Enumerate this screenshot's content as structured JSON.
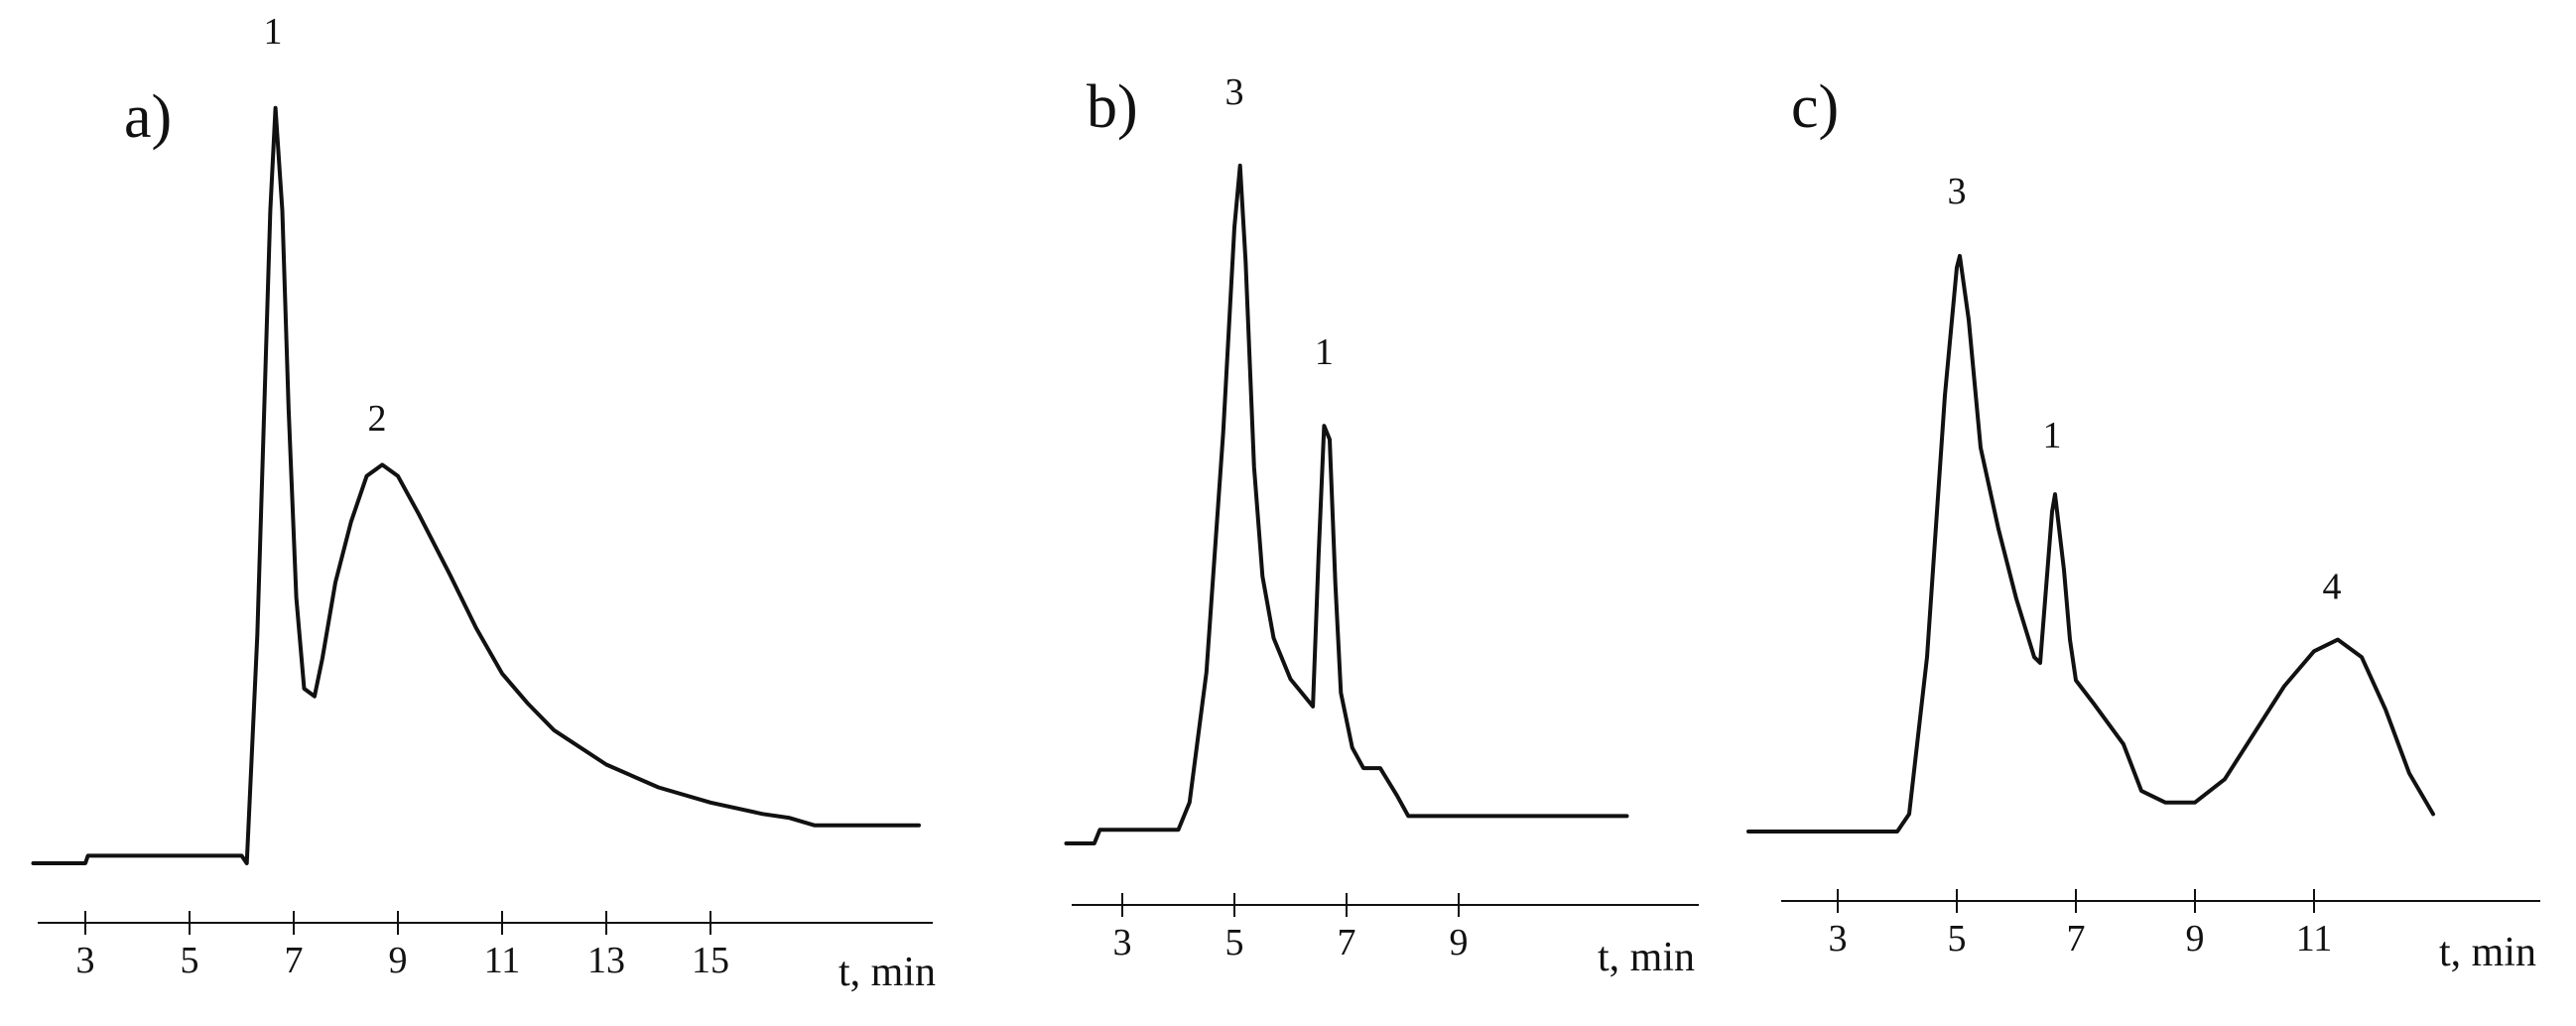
{
  "colors": {
    "trace": "#111111",
    "background": "#ffffff"
  },
  "chart_data": [
    {
      "type": "line",
      "panel_label": "a)",
      "xlabel": "t, min",
      "ylabel": "",
      "xticks": [
        3,
        5,
        7,
        9,
        11,
        13,
        15
      ],
      "xlim": [
        2.0,
        19.0
      ],
      "ylim": [
        0,
        1
      ],
      "grid": false,
      "series": [
        {
          "x": [
            2.0,
            3.0,
            3.05,
            5.0,
            6.0,
            6.1,
            6.3,
            6.55,
            6.65,
            6.78,
            6.9,
            7.05,
            7.2,
            7.4,
            7.55,
            7.8,
            8.1,
            8.4,
            8.7,
            9.0,
            9.4,
            10.0,
            10.5,
            11.0,
            11.5,
            12.0,
            13.0,
            14.0,
            15.0,
            16.0,
            16.5,
            17.0,
            18.0,
            19.0
          ],
          "y": [
            0.0,
            0.0,
            0.01,
            0.01,
            0.01,
            0.0,
            0.3,
            0.86,
            0.995,
            0.86,
            0.6,
            0.35,
            0.23,
            0.22,
            0.27,
            0.37,
            0.45,
            0.51,
            0.525,
            0.51,
            0.46,
            0.38,
            0.31,
            0.25,
            0.21,
            0.175,
            0.13,
            0.1,
            0.08,
            0.065,
            0.06,
            0.05,
            0.05,
            0.05
          ]
        }
      ],
      "annotations": [
        {
          "text": "1",
          "x": 6.6,
          "y": 1.08
        },
        {
          "text": "2",
          "x": 8.6,
          "y": 0.57
        }
      ]
    },
    {
      "type": "line",
      "panel_label": "b)",
      "xlabel": "t, min",
      "ylabel": "",
      "xticks": [
        3,
        5,
        7,
        9
      ],
      "xlim": [
        2.0,
        12.0
      ],
      "ylim": [
        0,
        1
      ],
      "grid": false,
      "series": [
        {
          "x": [
            2.0,
            2.5,
            2.6,
            3.0,
            4.0,
            4.2,
            4.5,
            4.8,
            5.0,
            5.1,
            5.2,
            5.35,
            5.5,
            5.7,
            6.0,
            6.3,
            6.4,
            6.5,
            6.6,
            6.7,
            6.8,
            6.9,
            7.1,
            7.3,
            7.6,
            7.9,
            8.1,
            8.3,
            9.0,
            10.0,
            11.0,
            12.0
          ],
          "y": [
            0.0,
            0.0,
            0.02,
            0.02,
            0.02,
            0.06,
            0.25,
            0.6,
            0.9,
            0.99,
            0.85,
            0.55,
            0.39,
            0.3,
            0.24,
            0.21,
            0.2,
            0.42,
            0.61,
            0.59,
            0.38,
            0.22,
            0.14,
            0.11,
            0.11,
            0.07,
            0.04,
            0.04,
            0.04,
            0.04,
            0.04,
            0.04
          ]
        }
      ],
      "annotations": [
        {
          "text": "3",
          "x": 5.0,
          "y": 1.08
        },
        {
          "text": "1",
          "x": 6.6,
          "y": 0.7
        }
      ]
    },
    {
      "type": "line",
      "panel_label": "c)",
      "xlabel": "t, min",
      "ylabel": "",
      "xticks": [
        3,
        5,
        7,
        9,
        11
      ],
      "xlim": [
        1.5,
        14.5
      ],
      "ylim": [
        0,
        1
      ],
      "grid": false,
      "series": [
        {
          "x": [
            1.5,
            3.0,
            4.0,
            4.2,
            4.5,
            4.8,
            5.0,
            5.05,
            5.2,
            5.4,
            5.7,
            6.0,
            6.3,
            6.4,
            6.6,
            6.65,
            6.8,
            6.9,
            7.0,
            7.3,
            7.8,
            8.1,
            8.5,
            9.0,
            9.5,
            10.0,
            10.5,
            11.0,
            11.4,
            11.8,
            12.2,
            12.6,
            13.0
          ],
          "y": [
            0.0,
            0.0,
            0.0,
            0.03,
            0.3,
            0.75,
            0.97,
            0.99,
            0.88,
            0.66,
            0.52,
            0.4,
            0.3,
            0.29,
            0.55,
            0.58,
            0.45,
            0.33,
            0.26,
            0.22,
            0.15,
            0.07,
            0.05,
            0.05,
            0.09,
            0.17,
            0.25,
            0.31,
            0.33,
            0.3,
            0.21,
            0.1,
            0.03
          ]
        }
      ],
      "annotations": [
        {
          "text": "3",
          "x": 5.0,
          "y": 1.08
        },
        {
          "text": "1",
          "x": 6.6,
          "y": 0.66
        },
        {
          "text": "4",
          "x": 11.3,
          "y": 0.4
        }
      ]
    }
  ]
}
